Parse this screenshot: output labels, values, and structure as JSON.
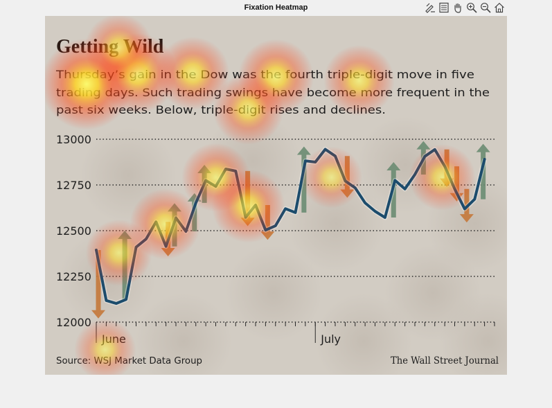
{
  "window": {
    "title": "Fixation Heatmap",
    "toolbar": [
      {
        "name": "edit-plot-icon",
        "tip": "Edit Plot"
      },
      {
        "name": "legend-icon",
        "tip": "Insert Legend"
      },
      {
        "name": "pan-icon",
        "tip": "Pan"
      },
      {
        "name": "zoom-in-icon",
        "tip": "Zoom In"
      },
      {
        "name": "zoom-out-icon",
        "tip": "Zoom Out"
      },
      {
        "name": "home-icon",
        "tip": "Restore View"
      }
    ]
  },
  "chart_data": {
    "type": "line",
    "title": "Getting Wild",
    "subtitle": [
      "Thursday’s gain in the Dow was the fourth triple-digit move in five",
      "trading days. Such trading swings have become more frequent in the",
      "past six weeks. Below, triple-digit rises and declines."
    ],
    "ylim": [
      12000,
      13000
    ],
    "yticks": [
      {
        "value": 13000,
        "label": "13000"
      },
      {
        "value": 12750,
        "label": "12750"
      },
      {
        "value": 12500,
        "label": "12500"
      },
      {
        "value": 12250,
        "label": "12250"
      },
      {
        "value": 12000,
        "label": "12000"
      }
    ],
    "months": [
      {
        "label": "June",
        "day_index": 0
      },
      {
        "label": "July",
        "day_index": 22
      }
    ],
    "trading_days": 41,
    "series": [
      {
        "values": [
          12394,
          12118,
          12102,
          12124,
          12410,
          12454,
          12548,
          12414,
          12570,
          12496,
          12652,
          12775,
          12742,
          12837,
          12826,
          12573,
          12640,
          12503,
          12527,
          12620,
          12599,
          12882,
          12875,
          12945,
          12908,
          12772,
          12734,
          12652,
          12606,
          12572,
          12775,
          12728,
          12807,
          12906,
          12944,
          12852,
          12728,
          12619,
          12672,
          12890
        ]
      }
    ],
    "moves": [
      {
        "day": 0,
        "from": 12394,
        "to": 12020,
        "dir": "down"
      },
      {
        "day": 3,
        "from": 12124,
        "to": 12500,
        "dir": "up"
      },
      {
        "day": 7,
        "from": 12548,
        "to": 12360,
        "dir": "down"
      },
      {
        "day": 8,
        "from": 12414,
        "to": 12650,
        "dir": "up"
      },
      {
        "day": 10,
        "from": 12496,
        "to": 12705,
        "dir": "up"
      },
      {
        "day": 11,
        "from": 12652,
        "to": 12860,
        "dir": "up"
      },
      {
        "day": 15,
        "from": 12826,
        "to": 12525,
        "dir": "down"
      },
      {
        "day": 17,
        "from": 12640,
        "to": 12450,
        "dir": "down"
      },
      {
        "day": 21,
        "from": 12599,
        "to": 12960,
        "dir": "up"
      },
      {
        "day": 25,
        "from": 12908,
        "to": 12680,
        "dir": "down"
      },
      {
        "day": 30,
        "from": 12572,
        "to": 12875,
        "dir": "up"
      },
      {
        "day": 33,
        "from": 12807,
        "to": 12990,
        "dir": "up"
      },
      {
        "day": 35,
        "from": 12944,
        "to": 12740,
        "dir": "down"
      },
      {
        "day": 36,
        "from": 12852,
        "to": 12660,
        "dir": "down"
      },
      {
        "day": 37,
        "from": 12728,
        "to": 12545,
        "dir": "down"
      },
      {
        "day": 39,
        "from": 12672,
        "to": 12975,
        "dir": "up"
      }
    ],
    "source": "Source: WSJ Market Data Group",
    "credit": "The Wall Street Journal",
    "colors": {
      "line": "#1c4c6c",
      "up": "#6a8c72",
      "down": "#c4783a",
      "text": "#1e1e1e"
    },
    "heat_spots": [
      {
        "x": 0.09,
        "y": 0.19,
        "weight": 1.0
      },
      {
        "x": 0.2,
        "y": 0.16,
        "weight": 0.75
      },
      {
        "x": 0.32,
        "y": 0.16,
        "weight": 0.6
      },
      {
        "x": 0.5,
        "y": 0.17,
        "weight": 0.65
      },
      {
        "x": 0.68,
        "y": 0.18,
        "weight": 0.55
      },
      {
        "x": 0.16,
        "y": 0.09,
        "weight": 0.5
      },
      {
        "x": 0.44,
        "y": 0.26,
        "weight": 0.55
      },
      {
        "x": 0.26,
        "y": 0.58,
        "weight": 0.55
      },
      {
        "x": 0.44,
        "y": 0.53,
        "weight": 0.6
      },
      {
        "x": 0.37,
        "y": 0.45,
        "weight": 0.5
      },
      {
        "x": 0.16,
        "y": 0.66,
        "weight": 0.45
      },
      {
        "x": 0.86,
        "y": 0.45,
        "weight": 0.45
      },
      {
        "x": 0.62,
        "y": 0.45,
        "weight": 0.35
      },
      {
        "x": 0.13,
        "y": 0.93,
        "weight": 0.35
      }
    ]
  }
}
